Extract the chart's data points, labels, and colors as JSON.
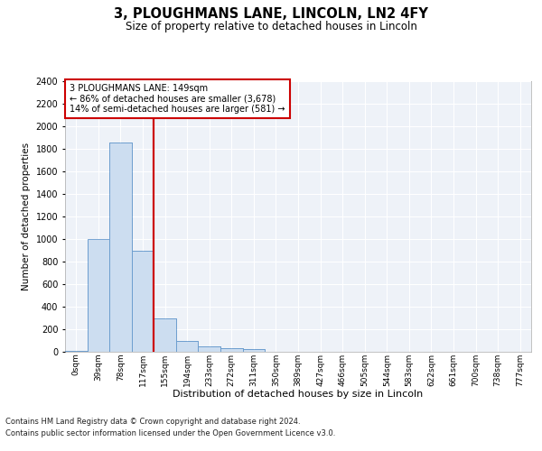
{
  "title": "3, PLOUGHMANS LANE, LINCOLN, LN2 4FY",
  "subtitle": "Size of property relative to detached houses in Lincoln",
  "xlabel": "Distribution of detached houses by size in Lincoln",
  "ylabel": "Number of detached properties",
  "bar_color": "#ccddf0",
  "bar_edge_color": "#6699cc",
  "bg_color": "#eef2f8",
  "grid_color": "#ffffff",
  "vline_color": "#cc0000",
  "vline_x_index": 3.5,
  "annotation_text": "3 PLOUGHMANS LANE: 149sqm\n← 86% of detached houses are smaller (3,678)\n14% of semi-detached houses are larger (581) →",
  "annotation_box_color": "#cc0000",
  "categories": [
    "0sqm",
    "39sqm",
    "78sqm",
    "117sqm",
    "155sqm",
    "194sqm",
    "233sqm",
    "272sqm",
    "311sqm",
    "350sqm",
    "389sqm",
    "427sqm",
    "466sqm",
    "505sqm",
    "544sqm",
    "583sqm",
    "622sqm",
    "661sqm",
    "700sqm",
    "738sqm",
    "777sqm"
  ],
  "values": [
    10,
    1000,
    1860,
    900,
    295,
    100,
    50,
    35,
    25,
    0,
    0,
    0,
    0,
    0,
    0,
    0,
    0,
    0,
    0,
    0,
    0
  ],
  "ylim": [
    0,
    2400
  ],
  "yticks": [
    0,
    200,
    400,
    600,
    800,
    1000,
    1200,
    1400,
    1600,
    1800,
    2000,
    2200,
    2400
  ],
  "footnote1": "Contains HM Land Registry data © Crown copyright and database right 2024.",
  "footnote2": "Contains public sector information licensed under the Open Government Licence v3.0."
}
